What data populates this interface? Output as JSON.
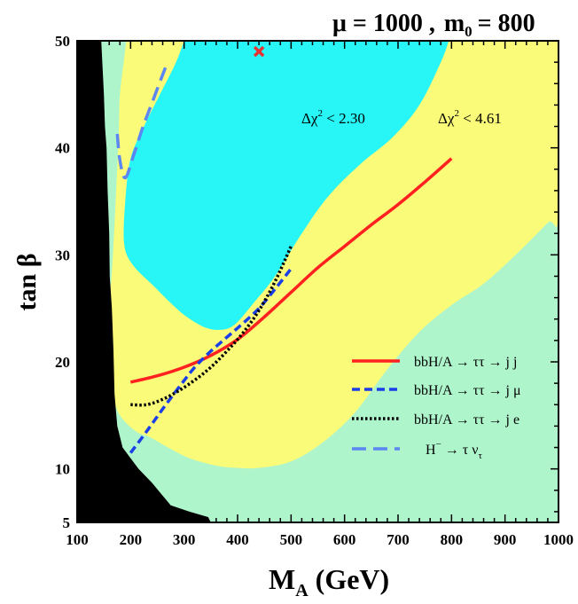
{
  "chart_data": {
    "type": "line",
    "title": "μ = 1000 ,  m_0 = 800",
    "title_parts": {
      "mu": "μ = 1000 ,",
      "m0_text": "m",
      "m0_sub": "0",
      "m0_value": "= 800"
    },
    "xlabel": "M_A (GeV)",
    "xlabel_parts": {
      "main": "M",
      "sub": "A",
      "rest": " (GeV)"
    },
    "ylabel": "tan β",
    "xlim": [
      100,
      1000
    ],
    "ylim": [
      5,
      50
    ],
    "x_ticks": [
      100,
      200,
      300,
      400,
      500,
      600,
      700,
      800,
      900,
      1000
    ],
    "y_ticks": [
      5,
      10,
      20,
      30,
      40,
      50
    ],
    "x_tick_labels": [
      "100",
      "200",
      "300",
      "400",
      "500",
      "600",
      "700",
      "800",
      "900",
      "1000"
    ],
    "y_tick_labels": [
      "5",
      "10",
      "20",
      "30",
      "40",
      "50"
    ],
    "colors": {
      "excluded": "#000000",
      "allowed": "#aef5cc",
      "chi2_461": "#fbfb7a",
      "chi2_230": "#28f5f5",
      "bb_jj": "#ff2020",
      "bb_jmu": "#1a3fe6",
      "bb_je": "#000000",
      "hpm": "#5c86f2",
      "best_fit": "#e83030"
    },
    "regions": [
      {
        "name": "excluded",
        "label": "",
        "boundary": [
          [
            100,
            50
          ],
          [
            145,
            50
          ],
          [
            147,
            48
          ],
          [
            150,
            45
          ],
          [
            152,
            42
          ],
          [
            155,
            40
          ],
          [
            157,
            36
          ],
          [
            160,
            32
          ],
          [
            161,
            28
          ],
          [
            165,
            25
          ],
          [
            168,
            21
          ],
          [
            170,
            17
          ],
          [
            175,
            14
          ],
          [
            185,
            12
          ],
          [
            200,
            11
          ],
          [
            215,
            10
          ],
          [
            240,
            8.7
          ],
          [
            255,
            7.8
          ],
          [
            275,
            6.6
          ],
          [
            310,
            6
          ],
          [
            345,
            5.5
          ],
          [
            350,
            5
          ],
          [
            100,
            5
          ]
        ]
      },
      {
        "name": "chi2_461",
        "label_parts": {
          "base": "Δχ",
          "sup": "2",
          "rest": " < 4.61"
        },
        "boundary": [
          [
            192,
            50
          ],
          [
            187,
            48
          ],
          [
            180,
            45
          ],
          [
            178,
            42
          ],
          [
            174,
            37
          ],
          [
            167,
            30
          ],
          [
            161,
            25
          ],
          [
            163,
            20
          ],
          [
            167,
            17
          ],
          [
            180,
            15
          ],
          [
            210,
            13.5
          ],
          [
            235,
            13
          ],
          [
            270,
            12
          ],
          [
            310,
            11
          ],
          [
            360,
            10.3
          ],
          [
            400,
            10.1
          ],
          [
            440,
            10.1
          ],
          [
            500,
            10.7
          ],
          [
            560,
            12.5
          ],
          [
            620,
            15.3
          ],
          [
            680,
            19.3
          ],
          [
            740,
            22.8
          ],
          [
            800,
            25.3
          ],
          [
            860,
            27.3
          ],
          [
            920,
            30
          ],
          [
            980,
            33
          ],
          [
            1000,
            34
          ],
          [
            1000,
            50
          ]
        ]
      },
      {
        "name": "chi2_230",
        "label_parts": {
          "base": "Δχ",
          "sup": "2",
          "rest": " < 2.30"
        },
        "boundary": [
          [
            300,
            50
          ],
          [
            285,
            48
          ],
          [
            255,
            45
          ],
          [
            225,
            42
          ],
          [
            200,
            39
          ],
          [
            190,
            35
          ],
          [
            188,
            31
          ],
          [
            205,
            29
          ],
          [
            245,
            27
          ],
          [
            275,
            25.5
          ],
          [
            305,
            24.2
          ],
          [
            340,
            23.2
          ],
          [
            370,
            23
          ],
          [
            395,
            23.5
          ],
          [
            430,
            25.5
          ],
          [
            470,
            28
          ],
          [
            520,
            32
          ],
          [
            570,
            35.5
          ],
          [
            630,
            38.5
          ],
          [
            690,
            41
          ],
          [
            740,
            44
          ],
          [
            780,
            48
          ],
          [
            795,
            50
          ]
        ]
      }
    ],
    "best_fit_point": {
      "x": 440,
      "y": 49
    },
    "series": [
      {
        "name": "bb_jj",
        "label_parts": {
          "pre": "bbH/A → ττ → j j"
        },
        "points": [
          [
            200,
            18.1
          ],
          [
            250,
            18.7
          ],
          [
            300,
            19.5
          ],
          [
            350,
            20.6
          ],
          [
            400,
            22.1
          ],
          [
            450,
            24.2
          ],
          [
            500,
            26.5
          ],
          [
            550,
            28.8
          ],
          [
            600,
            30.8
          ],
          [
            650,
            32.8
          ],
          [
            700,
            34.7
          ],
          [
            750,
            36.8
          ],
          [
            800,
            39
          ]
        ]
      },
      {
        "name": "bb_jmu",
        "label_parts": {
          "pre": "bbH/A → ττ → j μ"
        },
        "points": [
          [
            200,
            11.5
          ],
          [
            230,
            13.5
          ],
          [
            260,
            15.6
          ],
          [
            290,
            17.6
          ],
          [
            320,
            19.5
          ],
          [
            350,
            21
          ],
          [
            380,
            22.3
          ],
          [
            410,
            23.6
          ],
          [
            440,
            25
          ],
          [
            470,
            26.8
          ],
          [
            500,
            28.7
          ]
        ]
      },
      {
        "name": "bb_je",
        "label_parts": {
          "pre": "bbH/A → ττ → j e"
        },
        "points": [
          [
            200,
            16
          ],
          [
            230,
            16
          ],
          [
            260,
            16.5
          ],
          [
            290,
            17.3
          ],
          [
            320,
            18.3
          ],
          [
            350,
            19.5
          ],
          [
            380,
            21
          ],
          [
            410,
            22.7
          ],
          [
            440,
            24.8
          ],
          [
            470,
            27.5
          ],
          [
            500,
            30.8
          ]
        ]
      },
      {
        "name": "hpm",
        "label_parts": {
          "pre": "H",
          "sup": "−",
          "mid": " → τ ν",
          "sub": "τ"
        },
        "points": [
          [
            175,
            41.3
          ],
          [
            180,
            38.8
          ],
          [
            190,
            37.2
          ],
          [
            205,
            39.2
          ],
          [
            222,
            41.8
          ],
          [
            240,
            44.2
          ],
          [
            265,
            47.5
          ]
        ]
      }
    ]
  }
}
